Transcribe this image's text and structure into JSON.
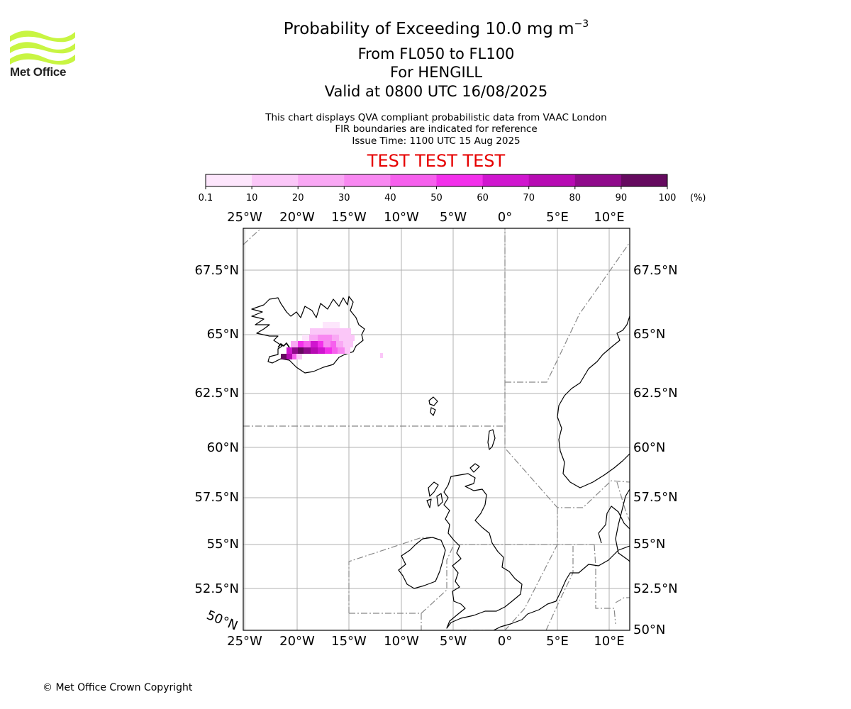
{
  "header": {
    "title_main": "Probability of Exceeding 10.0 mg m",
    "title_sup": "−3",
    "title_levels": "From FL050 to FL100",
    "title_volcano": "For HENGILL",
    "title_valid": "Valid at 0800 UTC 16/08/2025",
    "info_line1": "This chart displays QVA compliant probabilistic data from VAAC London",
    "info_line2": "FIR boundaries are indicated for reference",
    "info_line3": "Issue Time: 1100 UTC 15 Aug 2025",
    "test_banner": "TEST TEST TEST"
  },
  "logo": {
    "text": "Met Office",
    "color": "#c8f542"
  },
  "footer": {
    "copyright": "© Met Office Crown Copyright"
  },
  "colorbar": {
    "unit": "(%)",
    "ticks": [
      "0.1",
      "10",
      "20",
      "30",
      "40",
      "50",
      "60",
      "70",
      "80",
      "90",
      "100"
    ],
    "colors": [
      "#fde6fc",
      "#fbc7f8",
      "#f9a8f4",
      "#f888f1",
      "#f660ed",
      "#f330eb",
      "#d016cf",
      "#b70bb3",
      "#8f0a8b",
      "#650a5f"
    ]
  },
  "map": {
    "lon_labels": [
      "25°W",
      "20°W",
      "15°W",
      "10°W",
      "5°W",
      "0°",
      "5°E",
      "10°E"
    ],
    "lat_labels_left": [
      "67.5°N",
      "65°N",
      "62.5°N",
      "60°N",
      "57.5°N",
      "55°N",
      "52.5°N",
      "50°N"
    ],
    "lat_labels_right": [
      "67.5°N",
      "65°N",
      "62.5°N",
      "60°N",
      "57.5°N",
      "55°N",
      "52.5°N",
      "50°N"
    ],
    "colors": {
      "grid": "#b0b0b0",
      "coast": "#000000",
      "fir": "#888888",
      "frame": "#000000"
    }
  }
}
